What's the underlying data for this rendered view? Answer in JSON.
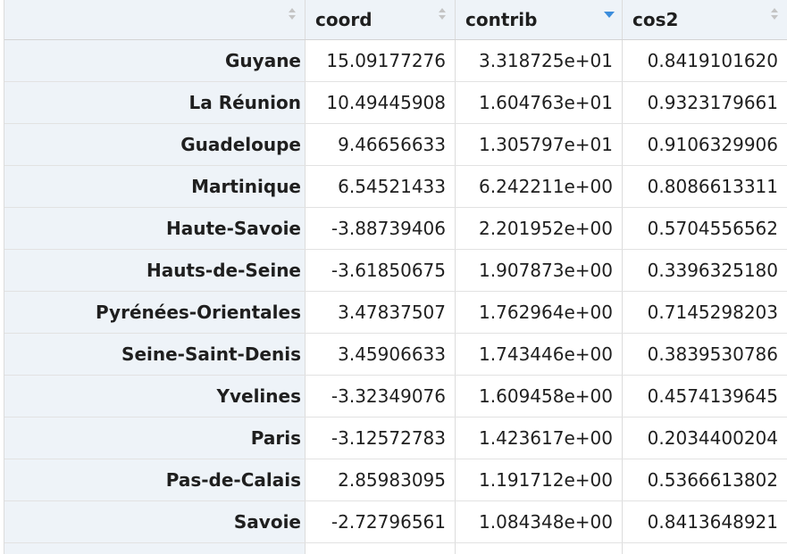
{
  "table": {
    "columns": [
      "",
      "coord",
      "contrib",
      "cos2"
    ],
    "sort": {
      "column": "contrib",
      "direction": "descending",
      "active_color": "#3c8ddc"
    },
    "rows": [
      {
        "label": "Guyane",
        "coord": "15.09177276",
        "contrib": "3.318725e+01",
        "cos2": "0.8419101620"
      },
      {
        "label": "La Réunion",
        "coord": "10.49445908",
        "contrib": "1.604763e+01",
        "cos2": "0.9323179661"
      },
      {
        "label": "Guadeloupe",
        "coord": "9.46656633",
        "contrib": "1.305797e+01",
        "cos2": "0.9106329906"
      },
      {
        "label": "Martinique",
        "coord": "6.54521433",
        "contrib": "6.242211e+00",
        "cos2": "0.8086613311"
      },
      {
        "label": "Haute-Savoie",
        "coord": "-3.88739406",
        "contrib": "2.201952e+00",
        "cos2": "0.5704556562"
      },
      {
        "label": "Hauts-de-Seine",
        "coord": "-3.61850675",
        "contrib": "1.907873e+00",
        "cos2": "0.3396325180"
      },
      {
        "label": "Pyrénées-Orientales",
        "coord": "3.47837507",
        "contrib": "1.762964e+00",
        "cos2": "0.7145298203"
      },
      {
        "label": "Seine-Saint-Denis",
        "coord": "3.45906633",
        "contrib": "1.743446e+00",
        "cos2": "0.3839530786"
      },
      {
        "label": "Yvelines",
        "coord": "-3.32349076",
        "contrib": "1.609458e+00",
        "cos2": "0.4574139645"
      },
      {
        "label": "Paris",
        "coord": "-3.12572783",
        "contrib": "1.423617e+00",
        "cos2": "0.2034400204"
      },
      {
        "label": "Pas-de-Calais",
        "coord": "2.85983095",
        "contrib": "1.191712e+00",
        "cos2": "0.5366613802"
      },
      {
        "label": "Savoie",
        "coord": "-2.72796561",
        "contrib": "1.084348e+00",
        "cos2": "0.8413648921"
      }
    ]
  }
}
